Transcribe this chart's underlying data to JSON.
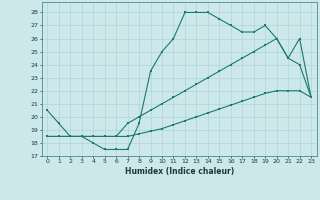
{
  "line1_x": [
    0,
    1,
    2,
    3,
    4,
    5,
    6,
    7,
    8,
    9,
    10,
    11,
    12,
    13,
    14,
    15,
    16,
    17,
    18,
    19,
    20,
    21,
    22,
    23
  ],
  "line1_y": [
    20.5,
    19.5,
    18.5,
    18.5,
    18.0,
    17.5,
    17.5,
    17.5,
    19.5,
    23.5,
    25.0,
    26.0,
    28.0,
    28.0,
    28.0,
    27.5,
    27.0,
    26.5,
    26.5,
    27.0,
    26.0,
    24.5,
    24.0,
    21.5
  ],
  "line2_x": [
    0,
    1,
    2,
    3,
    4,
    5,
    6,
    7,
    8,
    9,
    10,
    11,
    12,
    13,
    14,
    15,
    16,
    17,
    18,
    19,
    20,
    21,
    22,
    23
  ],
  "line2_y": [
    18.5,
    18.5,
    18.5,
    18.5,
    18.5,
    18.5,
    18.5,
    19.5,
    20.0,
    20.5,
    21.0,
    21.5,
    22.0,
    22.5,
    23.0,
    23.5,
    24.0,
    24.5,
    25.0,
    25.5,
    26.0,
    24.5,
    26.0,
    21.5
  ],
  "line3_x": [
    0,
    1,
    2,
    3,
    4,
    5,
    6,
    7,
    8,
    9,
    10,
    11,
    12,
    13,
    14,
    15,
    16,
    17,
    18,
    19,
    20,
    21,
    22,
    23
  ],
  "line3_y": [
    18.5,
    18.5,
    18.5,
    18.5,
    18.5,
    18.5,
    18.5,
    18.5,
    18.7,
    18.9,
    19.1,
    19.4,
    19.7,
    20.0,
    20.3,
    20.6,
    20.9,
    21.2,
    21.5,
    21.8,
    22.0,
    22.0,
    22.0,
    21.5
  ],
  "line_color": "#1a7a6e",
  "bg_color": "#cce8ea",
  "grid_color": "#b0d4d6",
  "xlabel": "Humidex (Indice chaleur)",
  "xlim": [
    -0.5,
    23.5
  ],
  "ylim": [
    17.0,
    28.8
  ],
  "yticks": [
    17,
    18,
    19,
    20,
    21,
    22,
    23,
    24,
    25,
    26,
    27,
    28
  ],
  "xticks": [
    0,
    1,
    2,
    3,
    4,
    5,
    6,
    7,
    8,
    9,
    10,
    11,
    12,
    13,
    14,
    15,
    16,
    17,
    18,
    19,
    20,
    21,
    22,
    23
  ]
}
